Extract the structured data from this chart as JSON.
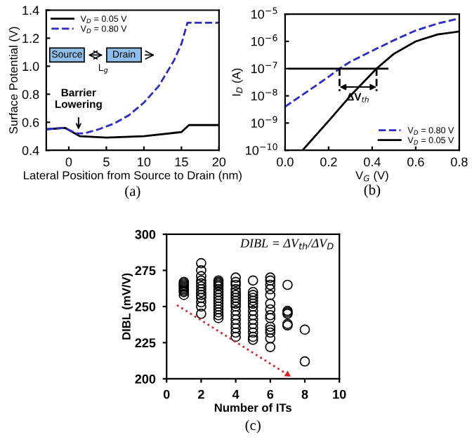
{
  "chart_data": [
    {
      "type": "line",
      "xlabel": "Lateral Position from Source to Drain (nm)",
      "ylabel": "Surface Potential (V)",
      "xlim": [
        -3,
        20
      ],
      "xticks": [
        0,
        5,
        10,
        15,
        20
      ],
      "ylim": [
        0.4,
        1.4
      ],
      "yticks": [
        {
          "value": 0.4,
          "label": "0.4"
        },
        {
          "value": 0.6,
          "label": "0.6"
        },
        {
          "value": 0.8,
          "label": "0.8"
        },
        {
          "value": 1.0,
          "label": "1.0"
        },
        {
          "value": 1.2,
          "label": "1.2"
        },
        {
          "value": 1.4,
          "label": "1.4"
        }
      ],
      "legend": "top left",
      "series": [
        {
          "name": "V$_{D}$ = 0.05 V",
          "color": "#000000",
          "line_style": "solid",
          "x": [
            -3,
            -0.5,
            0.5,
            1.5,
            5,
            10,
            15,
            16,
            20
          ],
          "values": [
            0.55,
            0.56,
            0.53,
            0.5,
            0.49,
            0.5,
            0.53,
            0.58,
            0.58
          ]
        },
        {
          "name": "V$_{D}$ = 0.80 V",
          "color": "#2b2bc8",
          "line_style": "dashed",
          "x": [
            -3,
            -0.5,
            1,
            2,
            4,
            6,
            8,
            10,
            12,
            14,
            15,
            15.8,
            20
          ],
          "values": [
            0.55,
            0.56,
            0.52,
            0.52,
            0.55,
            0.59,
            0.65,
            0.74,
            0.86,
            1.04,
            1.16,
            1.31,
            1.31
          ]
        }
      ],
      "annotations": [
        "Source",
        "Drain",
        "L$_{g}$",
        "(a)",
        {
          "text": "Barrier\nLowering",
          "x": 1.3,
          "y": 0.52
        }
      ]
    },
    {
      "type": "line",
      "xlabel": "V$_{G}$ (V)",
      "ylabel": "I$_{D}$ (A)",
      "log": "y",
      "xlim": [
        0,
        0.8
      ],
      "xticks": [
        {
          "value": 0,
          "label": "0.0"
        },
        {
          "value": 0.2,
          "label": "0.2"
        },
        {
          "value": 0.4,
          "label": "0.4"
        },
        {
          "value": 0.6,
          "label": "0.6"
        },
        {
          "value": 0.8,
          "label": "0.8"
        }
      ],
      "ylim": [
        1e-10,
        1e-05
      ],
      "yticks": [
        {
          "value": 1e-10,
          "label": "10$^{−10}$"
        },
        {
          "value": 1e-09,
          "label": "10$^{−9}$"
        },
        {
          "value": 1e-08,
          "label": "10$^{−8}$"
        },
        {
          "value": 1e-07,
          "label": "10$^{−7}$"
        },
        {
          "value": 1e-06,
          "label": "10$^{−6}$"
        },
        {
          "value": 1e-05,
          "label": "10$^{−5}$"
        }
      ],
      "legend": "bottom right",
      "series": [
        {
          "name": "V$_{D}$ = 0.80 V",
          "color": "#2b2bc8",
          "line_style": "dashed",
          "x": [
            0,
            0.1,
            0.2,
            0.25,
            0.3,
            0.4,
            0.5,
            0.6,
            0.7,
            0.8
          ],
          "values": [
            4e-09,
            1.4e-08,
            5e-08,
            1e-07,
            1.8e-07,
            4.5e-07,
            1.1e-06,
            2.5e-06,
            4.5e-06,
            7e-06
          ]
        },
        {
          "name": "V$_{D}$ = 0.05 V",
          "color": "#000000",
          "line_style": "solid",
          "x": [
            0.08,
            0.2,
            0.3,
            0.42,
            0.5,
            0.6,
            0.7,
            0.8
          ],
          "values": [
            1e-10,
            1.2e-09,
            1e-08,
            1e-07,
            3.5e-07,
            1e-06,
            1.8e-06,
            2.3e-06
          ]
        },
        {
          "color": "#000000",
          "line_style": "solid",
          "x": [
            0.02,
            0.47
          ],
          "values": [
            1e-07,
            1e-07
          ]
        },
        {
          "color": "#000000",
          "line_style": "dashed",
          "x": [
            0.25,
            0.25
          ],
          "values": [
            1e-07,
            1.5e-08
          ]
        },
        {
          "color": "#000000",
          "line_style": "dashed",
          "x": [
            0.42,
            0.42
          ],
          "values": [
            1e-07,
            1.5e-08
          ]
        }
      ],
      "annotations": [
        "(b)",
        {
          "text": "ΔV$_{th}$",
          "x": 0.335,
          "y": 1.3e-08
        }
      ]
    },
    {
      "type": "scatter",
      "xlabel": "Number of ITs",
      "ylabel": "DIBL (mV/V)",
      "marker": "circle",
      "xlim": [
        0,
        10
      ],
      "xticks": [
        0,
        2,
        4,
        6,
        8,
        10
      ],
      "ylim": [
        200,
        300
      ],
      "yticks": [
        200,
        225,
        250,
        275,
        300
      ],
      "series": [
        {
          "color": "#000000",
          "x": [
            1,
            1,
            1,
            1,
            1,
            1,
            1,
            1,
            1,
            2,
            2,
            2,
            2,
            2,
            2,
            2,
            2,
            2,
            2,
            2,
            2,
            2,
            3,
            3,
            3,
            3,
            3,
            3,
            3,
            3,
            3,
            3,
            3,
            3,
            3,
            3,
            3,
            3,
            4,
            4,
            4,
            4,
            4,
            4,
            4,
            4,
            4,
            4,
            4,
            4,
            4,
            4,
            4,
            4,
            4,
            5,
            5,
            5,
            5,
            5,
            5,
            5,
            5,
            5,
            5,
            5,
            5,
            5,
            5,
            5,
            6,
            6,
            6,
            6,
            6,
            6,
            6,
            6,
            6,
            6,
            6,
            6,
            6,
            6,
            7,
            7,
            7,
            7,
            7,
            7,
            8,
            8
          ],
          "values": [
            258,
            260,
            262,
            264,
            266,
            267,
            265,
            263,
            261,
            280,
            275,
            271,
            268,
            266,
            264,
            262,
            260,
            258,
            256,
            253,
            250,
            245,
            268,
            267,
            266,
            265,
            264,
            262,
            260,
            258,
            256,
            254,
            252,
            250,
            248,
            246,
            244,
            242,
            270,
            267,
            265,
            262,
            260,
            258,
            256,
            254,
            252,
            250,
            247,
            244,
            241,
            238,
            235,
            232,
            229,
            268,
            260,
            258,
            256,
            254,
            252,
            250,
            247,
            244,
            241,
            238,
            235,
            232,
            229,
            227,
            270,
            268,
            265,
            262,
            258,
            252,
            248,
            244,
            242,
            236,
            234,
            232,
            228,
            222,
            265,
            247,
            246,
            245,
            238,
            237,
            234,
            212
          ]
        },
        {
          "type": "line",
          "marker": "triangle",
          "color": "#e02020",
          "line_style": "dotted",
          "x": [
            0.6,
            7
          ],
          "values": [
            251,
            203
          ]
        }
      ],
      "annotations": [
        "DIBL = ΔV$_{th}$/ΔV$_{D}$",
        "(c)"
      ]
    }
  ]
}
